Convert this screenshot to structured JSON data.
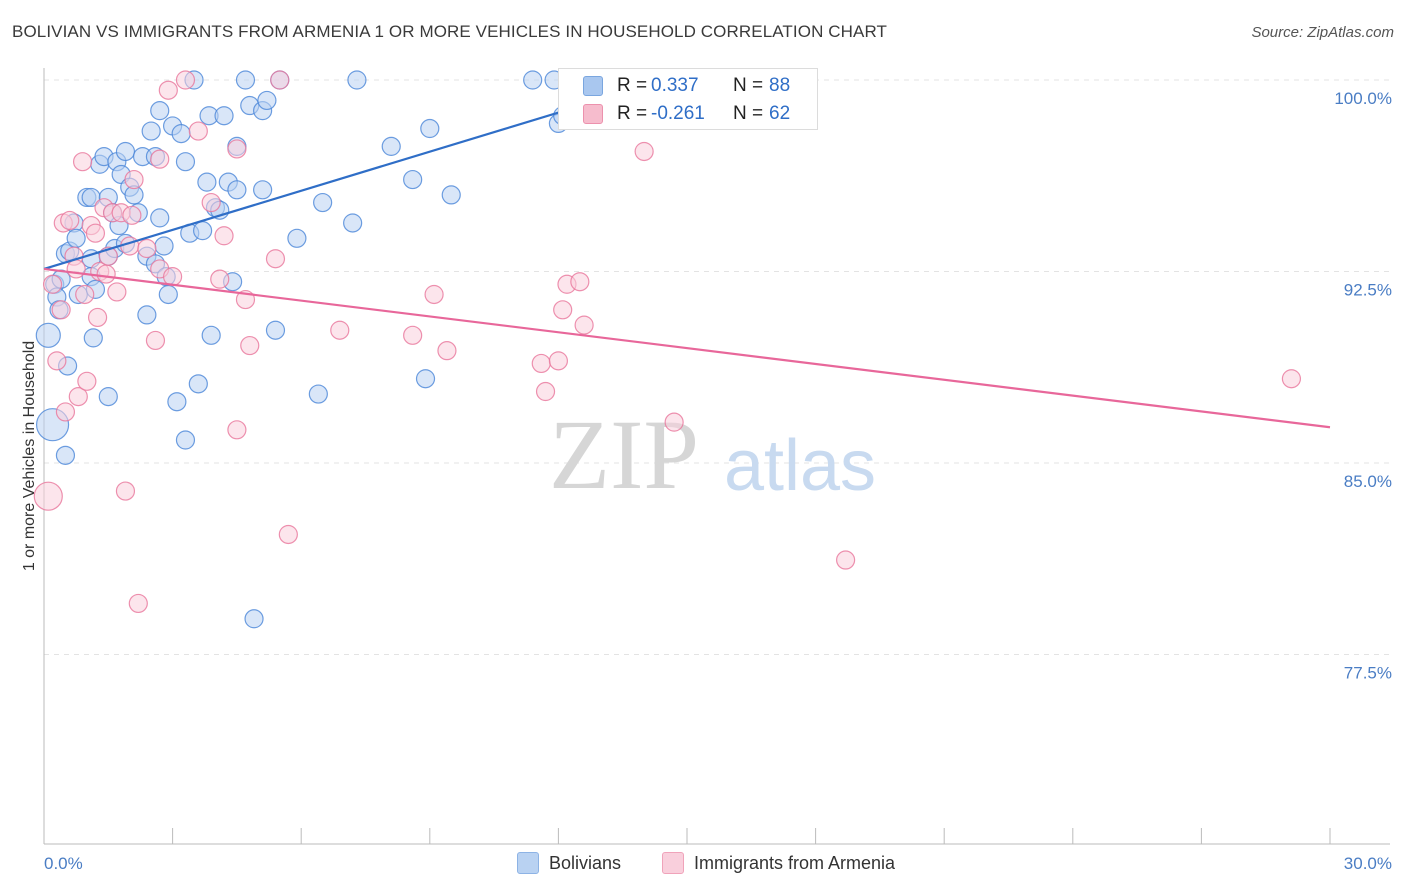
{
  "title": "BOLIVIAN VS IMMIGRANTS FROM ARMENIA 1 OR MORE VEHICLES IN HOUSEHOLD CORRELATION CHART",
  "source": "Source: ZipAtlas.com",
  "watermark": {
    "zip": "ZIP",
    "atlas": "atlas"
  },
  "stats": [
    {
      "r_label": "R =",
      "r_value": "0.337",
      "n_label": "N =",
      "n_value": "88",
      "color": "#a9c7ef",
      "border": "#7aa6df"
    },
    {
      "r_label": "R =",
      "r_value": "-0.261",
      "n_label": "N =",
      "n_value": "62",
      "color": "#f6bccd",
      "border": "#ec91ad"
    }
  ],
  "legend": [
    {
      "label": "Bolivians",
      "color": "#b9d2f2",
      "border": "#8db3e5"
    },
    {
      "label": "Immigrants from Armenia",
      "color": "#f9cfdc",
      "border": "#f0a3ba"
    }
  ],
  "chart_data": {
    "type": "scatter",
    "title": "BOLIVIAN VS IMMIGRANTS FROM ARMENIA 1 OR MORE VEHICLES IN HOUSEHOLD CORRELATION CHART",
    "ylabel": "1 or more Vehicles in Household",
    "xlabel": "",
    "xlim": [
      0,
      30
    ],
    "ylim": [
      70,
      100.8
    ],
    "x_tick_labels": [
      "0.0%",
      "30.0%"
    ],
    "y_ticks": [
      77.5,
      85.0,
      92.5,
      100.0
    ],
    "y_tick_labels": [
      "77.5%",
      "85.0%",
      "92.5%",
      "100.0%"
    ],
    "grid": true,
    "series": [
      {
        "name": "Bolivians",
        "color": "#4a86d8",
        "fill": "#b9d2f2",
        "trend": {
          "x": [
            0,
            14.5
          ],
          "y": [
            92.6,
            100.0
          ],
          "color": "#2f6ec7"
        },
        "points": [
          [
            0.2,
            86.5
          ],
          [
            0.1,
            90.0
          ],
          [
            0.25,
            92.0
          ],
          [
            0.3,
            91.5
          ],
          [
            0.35,
            91.0
          ],
          [
            0.4,
            92.2
          ],
          [
            0.5,
            93.2
          ],
          [
            0.5,
            85.3
          ],
          [
            0.55,
            88.8
          ],
          [
            0.6,
            93.3
          ],
          [
            0.7,
            94.4
          ],
          [
            0.75,
            93.8
          ],
          [
            0.8,
            91.6
          ],
          [
            1.0,
            95.4
          ],
          [
            1.1,
            95.4
          ],
          [
            1.1,
            93.0
          ],
          [
            1.1,
            92.3
          ],
          [
            1.15,
            89.9
          ],
          [
            1.2,
            91.8
          ],
          [
            1.3,
            96.7
          ],
          [
            1.4,
            97.0
          ],
          [
            1.5,
            95.4
          ],
          [
            1.5,
            93.1
          ],
          [
            1.5,
            87.6
          ],
          [
            1.6,
            94.8
          ],
          [
            1.65,
            93.4
          ],
          [
            1.7,
            96.8
          ],
          [
            1.75,
            94.3
          ],
          [
            1.8,
            96.3
          ],
          [
            1.9,
            93.6
          ],
          [
            1.9,
            97.2
          ],
          [
            2.0,
            95.8
          ],
          [
            2.1,
            95.5
          ],
          [
            2.2,
            94.8
          ],
          [
            2.3,
            97.0
          ],
          [
            2.4,
            93.1
          ],
          [
            2.4,
            90.8
          ],
          [
            2.5,
            98.0
          ],
          [
            2.6,
            97.0
          ],
          [
            2.6,
            92.8
          ],
          [
            2.7,
            98.8
          ],
          [
            2.7,
            94.6
          ],
          [
            2.8,
            93.5
          ],
          [
            2.85,
            92.3
          ],
          [
            2.9,
            91.6
          ],
          [
            3.0,
            98.2
          ],
          [
            3.1,
            87.4
          ],
          [
            3.2,
            97.9
          ],
          [
            3.3,
            96.8
          ],
          [
            3.3,
            85.9
          ],
          [
            3.4,
            94.0
          ],
          [
            3.5,
            100.0
          ],
          [
            3.6,
            88.1
          ],
          [
            3.7,
            94.1
          ],
          [
            3.8,
            96.0
          ],
          [
            3.85,
            98.6
          ],
          [
            3.9,
            90.0
          ],
          [
            4.0,
            95.0
          ],
          [
            4.1,
            94.9
          ],
          [
            4.2,
            98.6
          ],
          [
            4.3,
            96.0
          ],
          [
            4.4,
            92.1
          ],
          [
            4.5,
            95.7
          ],
          [
            4.5,
            97.4
          ],
          [
            4.7,
            100.0
          ],
          [
            4.8,
            99.0
          ],
          [
            4.9,
            78.9
          ],
          [
            5.1,
            98.8
          ],
          [
            5.1,
            95.7
          ],
          [
            5.2,
            99.2
          ],
          [
            5.4,
            90.2
          ],
          [
            5.5,
            100.0
          ],
          [
            5.9,
            93.8
          ],
          [
            6.4,
            87.7
          ],
          [
            6.5,
            95.2
          ],
          [
            7.2,
            94.4
          ],
          [
            7.3,
            100.0
          ],
          [
            8.1,
            97.4
          ],
          [
            8.6,
            96.1
          ],
          [
            8.9,
            88.3
          ],
          [
            9.0,
            98.1
          ],
          [
            9.5,
            95.5
          ],
          [
            11.4,
            100.0
          ],
          [
            11.9,
            100.0
          ],
          [
            12.0,
            98.3
          ],
          [
            12.1,
            98.6
          ],
          [
            12.8,
            100.0
          ],
          [
            14.4,
            100.0
          ]
        ]
      },
      {
        "name": "Immigrants from Armenia",
        "color": "#e8759b",
        "fill": "#f9cfdc",
        "trend": {
          "x": [
            0,
            30
          ],
          "y": [
            92.6,
            86.4
          ],
          "color": "#e8679a"
        },
        "points": [
          [
            0.1,
            83.7
          ],
          [
            0.2,
            92.0
          ],
          [
            0.3,
            89.0
          ],
          [
            0.4,
            91.0
          ],
          [
            0.45,
            94.4
          ],
          [
            0.5,
            87.0
          ],
          [
            0.6,
            94.5
          ],
          [
            0.7,
            93.1
          ],
          [
            0.75,
            92.6
          ],
          [
            0.8,
            87.6
          ],
          [
            0.9,
            96.8
          ],
          [
            0.95,
            91.6
          ],
          [
            1.0,
            88.2
          ],
          [
            1.1,
            94.3
          ],
          [
            1.2,
            94.0
          ],
          [
            1.25,
            90.7
          ],
          [
            1.3,
            92.5
          ],
          [
            1.4,
            95.0
          ],
          [
            1.45,
            92.4
          ],
          [
            1.5,
            93.1
          ],
          [
            1.6,
            94.8
          ],
          [
            1.7,
            91.7
          ],
          [
            1.8,
            94.8
          ],
          [
            1.9,
            83.9
          ],
          [
            2.0,
            93.5
          ],
          [
            2.05,
            94.7
          ],
          [
            2.1,
            96.1
          ],
          [
            2.2,
            79.5
          ],
          [
            2.4,
            93.4
          ],
          [
            2.6,
            89.8
          ],
          [
            2.7,
            92.6
          ],
          [
            2.7,
            96.9
          ],
          [
            2.9,
            99.6
          ],
          [
            3.0,
            92.3
          ],
          [
            3.3,
            100.0
          ],
          [
            3.6,
            98.0
          ],
          [
            3.9,
            95.2
          ],
          [
            4.1,
            92.2
          ],
          [
            4.2,
            93.9
          ],
          [
            4.5,
            86.3
          ],
          [
            4.5,
            97.3
          ],
          [
            4.7,
            91.4
          ],
          [
            4.8,
            89.6
          ],
          [
            5.4,
            93.0
          ],
          [
            5.5,
            100.0
          ],
          [
            5.7,
            82.2
          ],
          [
            6.9,
            90.2
          ],
          [
            8.6,
            90.0
          ],
          [
            9.1,
            91.6
          ],
          [
            9.4,
            89.4
          ],
          [
            11.6,
            88.9
          ],
          [
            11.7,
            87.8
          ],
          [
            12.0,
            89.0
          ],
          [
            12.1,
            91.0
          ],
          [
            12.2,
            92.0
          ],
          [
            12.5,
            92.1
          ],
          [
            12.6,
            90.4
          ],
          [
            14.0,
            97.2
          ],
          [
            14.7,
            86.6
          ],
          [
            15.0,
            99.3
          ],
          [
            18.7,
            81.2
          ],
          [
            29.1,
            88.3
          ]
        ]
      }
    ]
  }
}
